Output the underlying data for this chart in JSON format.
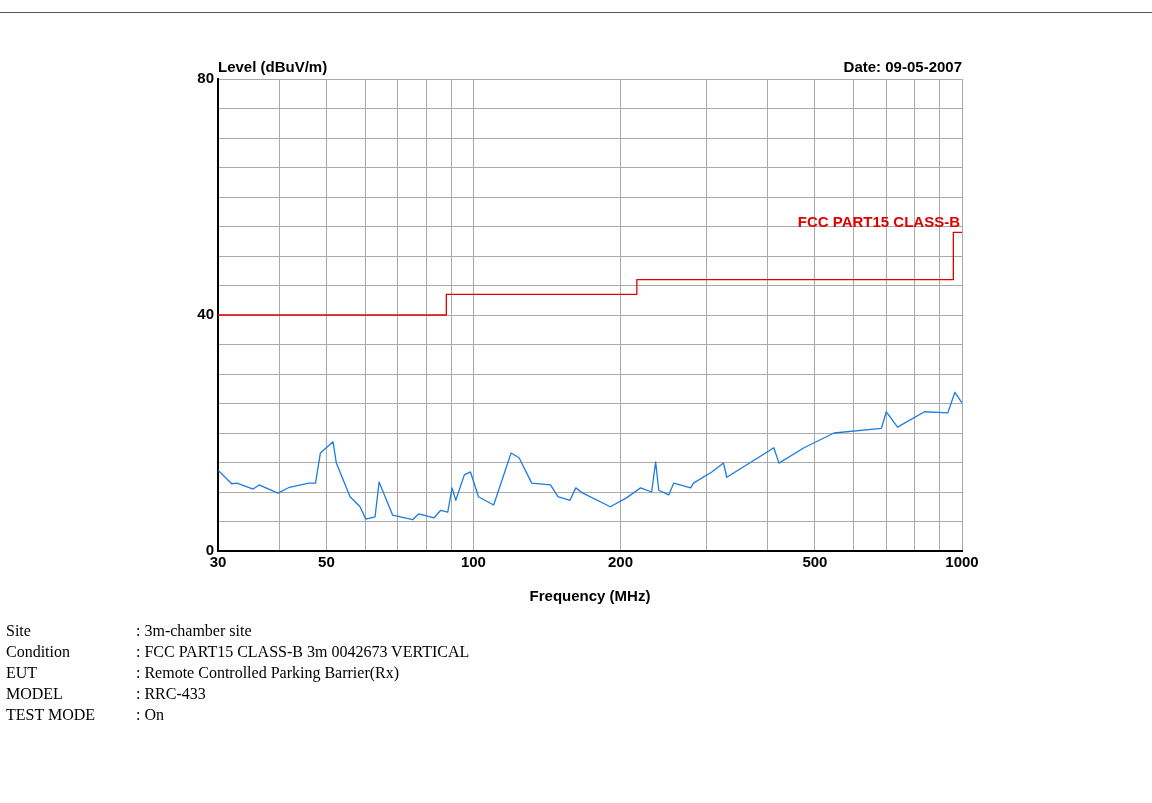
{
  "chart_data": {
    "type": "line",
    "xlabel": "Frequency (MHz)",
    "ylabel": "Level (dBuV/m)",
    "log": "x",
    "grid": true,
    "legend": false,
    "marker": "none",
    "line_style": "solid",
    "xlim": [
      30,
      1000
    ],
    "xticks": [
      30,
      {
        "value": 40,
        "label": null
      },
      50,
      {
        "value": 60,
        "label": null
      },
      {
        "value": 70,
        "label": null
      },
      {
        "value": 80,
        "label": null
      },
      {
        "value": 90,
        "label": null
      },
      100,
      200,
      {
        "value": 300,
        "label": null
      },
      {
        "value": 400,
        "label": null
      },
      500,
      {
        "value": 600,
        "label": null
      },
      {
        "value": 700,
        "label": null
      },
      {
        "value": 800,
        "label": null
      },
      {
        "value": 900,
        "label": null
      },
      1000
    ],
    "ylim": [
      0,
      80
    ],
    "yticks": [
      0,
      {
        "value": 5,
        "label": null
      },
      {
        "value": 10,
        "label": null
      },
      {
        "value": 15,
        "label": null
      },
      {
        "value": 20,
        "label": null
      },
      {
        "value": 25,
        "label": null
      },
      {
        "value": 30,
        "label": null
      },
      {
        "value": 35,
        "label": null
      },
      40,
      {
        "value": 45,
        "label": null
      },
      {
        "value": 50,
        "label": null
      },
      {
        "value": 55,
        "label": null
      },
      {
        "value": 60,
        "label": null
      },
      {
        "value": 65,
        "label": null
      },
      {
        "value": 70,
        "label": null
      },
      {
        "value": 75,
        "label": null
      },
      80
    ],
    "series": [
      {
        "type": "step",
        "name": "FCC PART15 CLASS-B",
        "color": "#e00000",
        "x": [
          30,
          88,
          216,
          960,
          1000
        ],
        "values": [
          40,
          43.5,
          46,
          54,
          54
        ]
      },
      {
        "type": "line",
        "color": "#1e7be0",
        "x": [
          30,
          32,
          32.8,
          35.4,
          36.4,
          39.8,
          42,
          46,
          47.5,
          48.6,
          51.6,
          52.4,
          55.9,
          58.6,
          60.2,
          62.9,
          64.1,
          68.3,
          75.1,
          77.3,
          83,
          85.7,
          88.6,
          90.4,
          92,
          95.8,
          98.6,
          102.4,
          110,
          119.4,
          124,
          131.6,
          143.8,
          148.9,
          157.6,
          162,
          167.5,
          190.6,
          205.7,
          219.8,
          231.6,
          236,
          239.5,
          251,
          257,
          278.4,
          282,
          307.5,
          325,
          330,
          412,
          422,
          475,
          547,
          684,
          700,
          738,
          838,
          935,
          967,
          1000
        ],
        "values": [
          13.7,
          11.4,
          11.5,
          10.5,
          11.2,
          9.8,
          10.8,
          11.5,
          11.5,
          16.6,
          18.5,
          14.9,
          9.2,
          7.5,
          5.4,
          5.8,
          11.7,
          6.1,
          5.3,
          6.3,
          5.6,
          6.9,
          6.6,
          10.7,
          8.6,
          12.9,
          13.4,
          9.2,
          7.8,
          16.6,
          15.8,
          11.5,
          11.2,
          9.2,
          8.6,
          10.7,
          9.8,
          7.5,
          9.0,
          10.7,
          10.0,
          15.1,
          10.3,
          9.5,
          11.5,
          10.7,
          11.5,
          13.4,
          14.9,
          12.5,
          17.5,
          14.9,
          17.5,
          20.0,
          20.8,
          23.6,
          21.0,
          23.6,
          23.4,
          26.9,
          25.1
        ]
      }
    ],
    "annotations": [
      "Date: 09-05-2007",
      "Site : 3m-chamber site",
      "Condition : FCC PART15 CLASS-B 3m 0042673 VERTICAL",
      "EUT : Remote Controlled Parking Barrier(Rx)",
      "MODEL : RRC-433",
      "TEST MODE : On"
    ]
  }
}
